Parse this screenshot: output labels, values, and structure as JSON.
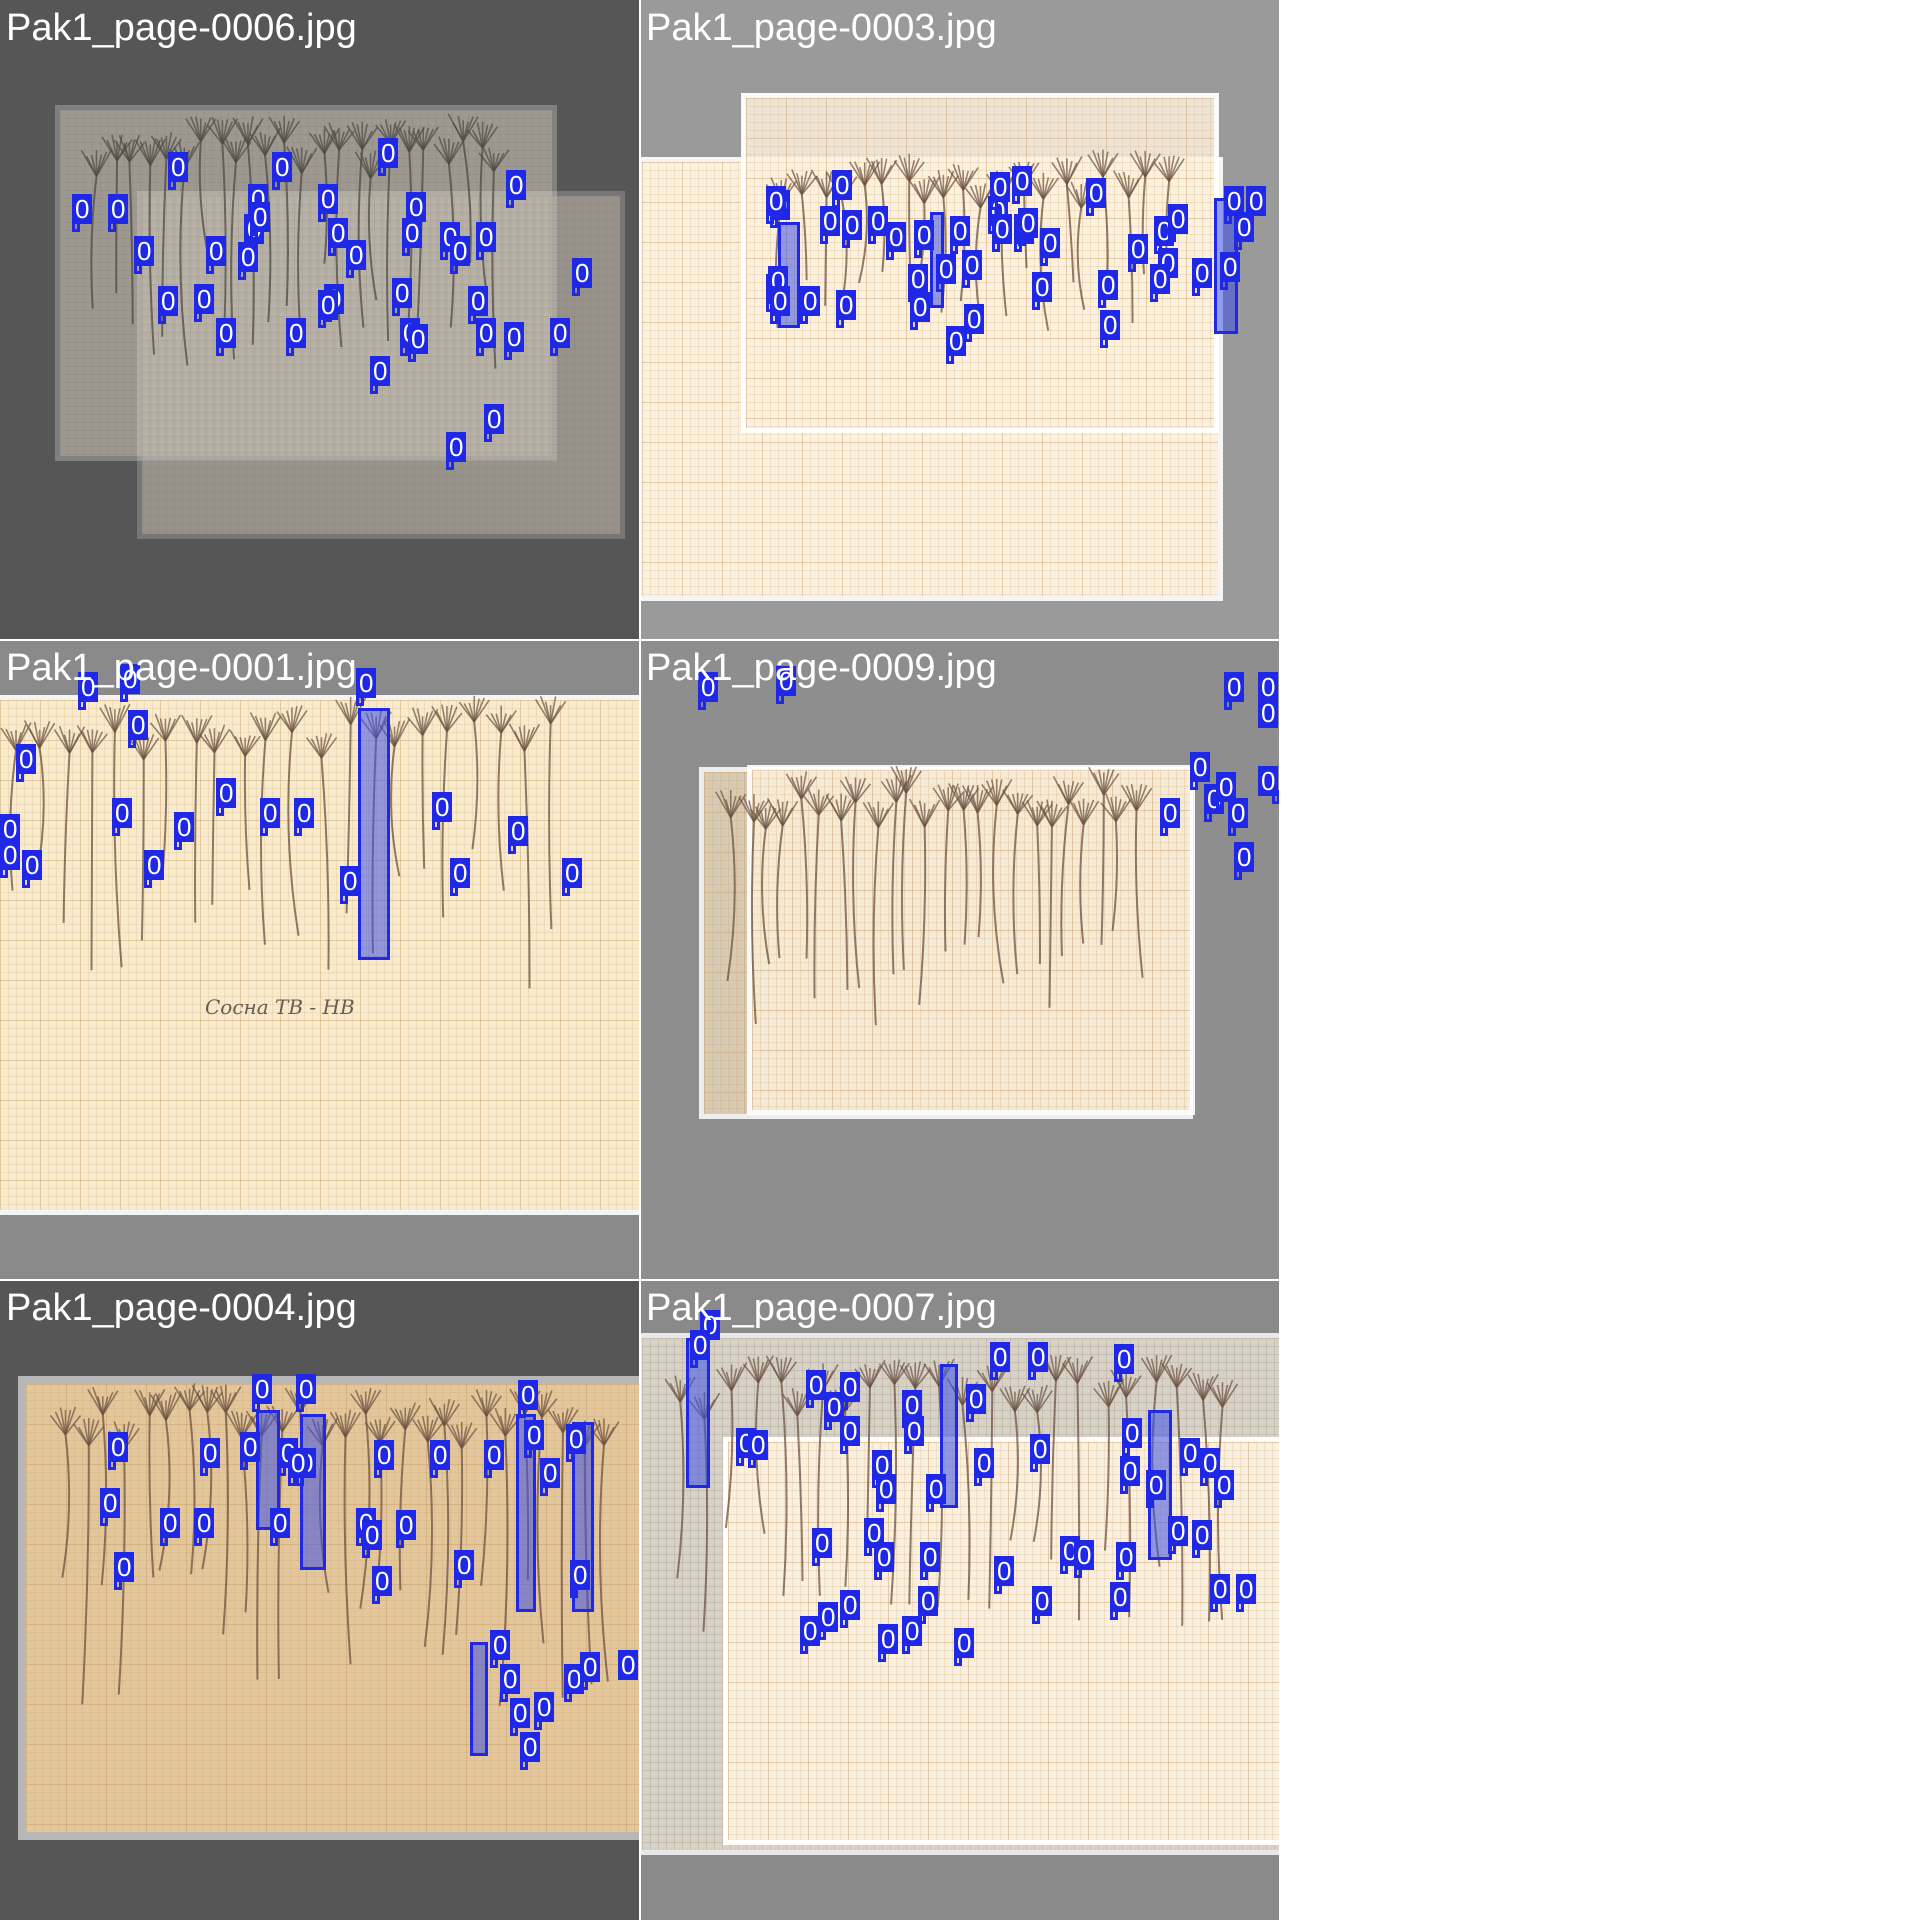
{
  "mosaic": {
    "tiles": [
      {
        "title": "Pak1_page-0006.jpg"
      },
      {
        "title": "Pak1_page-0003.jpg"
      },
      {
        "title": "Pak1_page-0001.jpg"
      },
      {
        "title": "Pak1_page-0009.jpg"
      },
      {
        "title": "Pak1_page-0004.jpg"
      },
      {
        "title": "Pak1_page-0007.jpg"
      }
    ],
    "detection_label": "0",
    "colors": {
      "box": "#1e28e6",
      "dark_tile_bg": "#565656",
      "mid_tile_bg": "#9a9a9a",
      "grey_tile_bg": "#8a8a8a"
    }
  },
  "handwriting": {
    "tile3_caption": "Сосна ТВ - НВ"
  }
}
